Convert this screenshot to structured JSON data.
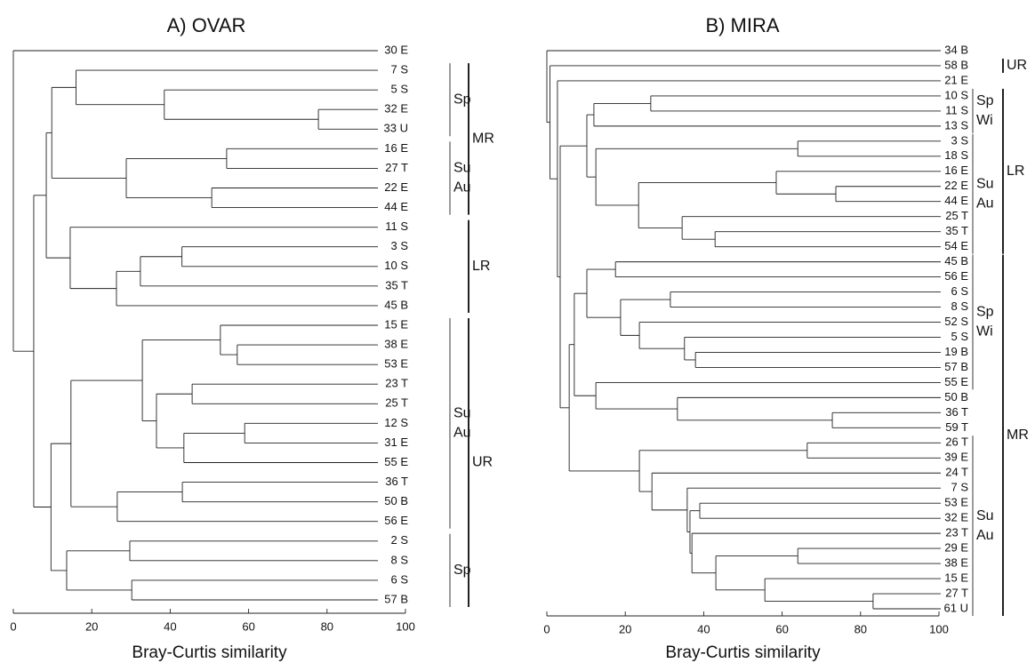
{
  "chart_data": [
    {
      "type": "dendrogram",
      "title": "A) OVAR",
      "xlabel": "Bray-Curtis similarity",
      "xlim": [
        0,
        100
      ],
      "xticks": [
        0,
        20,
        40,
        60,
        80,
        100
      ],
      "tree": {
        "similarity": 0,
        "children": [
          "30 E",
          {
            "similarity": 5.2,
            "children": [
              {
                "similarity": 8.4,
                "children": [
                  {
                    "similarity": 9.8,
                    "children": [
                      {
                        "similarity": 16,
                        "children": [
                          "7 S",
                          {
                            "similarity": 38.5,
                            "children": [
                              "5 S",
                              {
                                "similarity": 77.8,
                                "children": [
                                  "32 E",
                                  "33 U"
                                ]
                              }
                            ]
                          }
                        ]
                      },
                      {
                        "similarity": 28.8,
                        "children": [
                          {
                            "similarity": 54.4,
                            "children": [
                              "16 E",
                              "27 T"
                            ]
                          },
                          {
                            "similarity": 50.6,
                            "children": [
                              "22 E",
                              "44 E"
                            ]
                          }
                        ]
                      }
                    ]
                  },
                  {
                    "similarity": 14.5,
                    "children": [
                      "11 S",
                      {
                        "similarity": 26.3,
                        "children": [
                          {
                            "similarity": 32.4,
                            "children": [
                              {
                                "similarity": 43,
                                "children": [
                                  "3 S",
                                  "10 S"
                                ]
                              },
                              "35 T"
                            ]
                          },
                          "45 B"
                        ]
                      }
                    ]
                  }
                ]
              },
              {
                "similarity": 9.6,
                "children": [
                  {
                    "similarity": 14.7,
                    "children": [
                      {
                        "similarity": 32.9,
                        "children": [
                          {
                            "similarity": 52.8,
                            "children": [
                              "15 E",
                              {
                                "similarity": 57.1,
                                "children": [
                                  "38 E",
                                  "53 E"
                                ]
                              }
                            ]
                          },
                          {
                            "similarity": 36.5,
                            "children": [
                              {
                                "similarity": 45.6,
                                "children": [
                                  "23 T",
                                  "25 T"
                                ]
                              },
                              {
                                "similarity": 43.5,
                                "children": [
                                  {
                                    "similarity": 59,
                                    "children": [
                                      "12 S",
                                      "31 E"
                                    ]
                                  },
                                  "55 E"
                                ]
                              }
                            ]
                          }
                        ]
                      },
                      {
                        "similarity": 26.5,
                        "children": [
                          {
                            "similarity": 43.1,
                            "children": [
                              "36 T",
                              "50 B"
                            ]
                          },
                          "56 E"
                        ]
                      }
                    ]
                  },
                  {
                    "similarity": 13.6,
                    "children": [
                      {
                        "similarity": 29.7,
                        "children": [
                          "2 S",
                          "8 S"
                        ]
                      },
                      {
                        "similarity": 30.2,
                        "children": [
                          "6 S",
                          "57 B"
                        ]
                      }
                    ]
                  }
                ]
              }
            ]
          }
        ]
      },
      "zones": [
        {
          "label": "MR",
          "from": "7 S",
          "to": "44 E"
        },
        {
          "label": "LR",
          "from": "11 S",
          "to": "45 B"
        },
        {
          "label": "UR",
          "from": "15 E",
          "to": "57 B"
        }
      ],
      "seasons": [
        {
          "label": [
            "Sp"
          ],
          "from": "7 S",
          "to": "33 U"
        },
        {
          "label": [
            "Su",
            "Au"
          ],
          "from": "16 E",
          "to": "44 E"
        },
        {
          "label": [
            "Su",
            "Au"
          ],
          "from": "15 E",
          "to": "56 E"
        },
        {
          "label": [
            "Sp"
          ],
          "from": "2 S",
          "to": "57 B"
        }
      ]
    },
    {
      "type": "dendrogram",
      "title": "B) MIRA",
      "xlabel": "Bray-Curtis similarity",
      "xlim": [
        0,
        100
      ],
      "xticks": [
        0,
        20,
        40,
        60,
        80,
        100
      ],
      "tree": {
        "similarity": 0,
        "children": [
          "34 B",
          {
            "similarity": 0.8,
            "children": [
              "58 B",
              {
                "similarity": 2.7,
                "children": [
                  "21 E",
                  {
                    "similarity": 3.4,
                    "children": [
                      {
                        "similarity": 10.2,
                        "children": [
                          {
                            "similarity": 12,
                            "children": [
                              {
                                "similarity": 26.5,
                                "children": [
                                  "10 S",
                                  "11 S"
                                ]
                              },
                              "13 S"
                            ]
                          },
                          {
                            "similarity": 12.5,
                            "children": [
                              {
                                "similarity": 64,
                                "children": [
                                  "3 S",
                                  "18 S"
                                ]
                              },
                              {
                                "similarity": 23.4,
                                "children": [
                                  {
                                    "similarity": 58.5,
                                    "children": [
                                      "16 E",
                                      {
                                        "similarity": 73.7,
                                        "children": [
                                          "22 E",
                                          "44 E"
                                        ]
                                      }
                                    ]
                                  },
                                  {
                                    "similarity": 34.5,
                                    "children": [
                                      "25 T",
                                      {
                                        "similarity": 42.9,
                                        "children": [
                                          "35 T",
                                          "54 E"
                                        ]
                                      }
                                    ]
                                  }
                                ]
                              }
                            ]
                          }
                        ]
                      },
                      {
                        "similarity": 5.7,
                        "children": [
                          {
                            "similarity": 7,
                            "children": [
                              {
                                "similarity": 10.2,
                                "children": [
                                  {
                                    "similarity": 17.5,
                                    "children": [
                                      "45 B",
                                      "56 E"
                                    ]
                                  },
                                  {
                                    "similarity": 18.8,
                                    "children": [
                                      {
                                        "similarity": 31.5,
                                        "children": [
                                          "6 S",
                                          "8 S"
                                        ]
                                      },
                                      {
                                        "similarity": 23.6,
                                        "children": [
                                          "52 S",
                                          {
                                            "similarity": 35.1,
                                            "children": [
                                              "5 S",
                                              {
                                                "similarity": 37.9,
                                                "children": [
                                                  "19 B",
                                                  "57 B"
                                                ]
                                              }
                                            ]
                                          }
                                        ]
                                      }
                                    ]
                                  }
                                ]
                              },
                              {
                                "similarity": 12.5,
                                "children": [
                                  "55 E",
                                  {
                                    "similarity": 33.3,
                                    "children": [
                                      "50 B",
                                      {
                                        "similarity": 72.8,
                                        "children": [
                                          "36 T",
                                          "59 T"
                                        ]
                                      }
                                    ]
                                  }
                                ]
                              }
                            ]
                          },
                          {
                            "similarity": 23.6,
                            "children": [
                              {
                                "similarity": 66.4,
                                "children": [
                                  "26 T",
                                  "39 E"
                                ]
                              },
                              {
                                "similarity": 26.8,
                                "children": [
                                  "24 T",
                                  {
                                    "similarity": 35.8,
                                    "children": [
                                      "7 S",
                                      {
                                        "similarity": 36.5,
                                        "children": [
                                          {
                                            "similarity": 39,
                                            "children": [
                                              "53 E",
                                              "32 E"
                                            ]
                                          },
                                          {
                                            "similarity": 37,
                                            "children": [
                                              "23 T",
                                              {
                                                "similarity": 43.1,
                                                "children": [
                                                  {
                                                    "similarity": 64,
                                                    "children": [
                                                      "29 E",
                                                      "38 E"
                                                    ]
                                                  },
                                                  {
                                                    "similarity": 55.6,
                                                    "children": [
                                                      "15 E",
                                                      {
                                                        "similarity": 83.2,
                                                        "children": [
                                                          "27 T",
                                                          "61 U"
                                                        ]
                                                      }
                                                    ]
                                                  }
                                                ]
                                              }
                                            ]
                                          }
                                        ]
                                      }
                                    ]
                                  }
                                ]
                              }
                            ]
                          }
                        ]
                      }
                    ]
                  }
                ]
              }
            ]
          }
        ]
      },
      "zones": [
        {
          "label": "UR",
          "from": "58 B",
          "to": "58 B"
        },
        {
          "label": "LR",
          "from": "10 S",
          "to": "54 E"
        },
        {
          "label": "MR",
          "from": "45 B",
          "to": "61 U"
        }
      ],
      "seasons": [
        {
          "label": [
            "Sp",
            "Wi"
          ],
          "from": "10 S",
          "to": "13 S"
        },
        {
          "label": [
            "Su",
            "Au"
          ],
          "from": "3 S",
          "to": "54 E"
        },
        {
          "label": [
            "Sp",
            "Wi"
          ],
          "from": "45 B",
          "to": "55 E"
        },
        {
          "label": [
            "Su",
            "Au"
          ],
          "from": "26 T",
          "to": "61 U"
        }
      ]
    }
  ]
}
